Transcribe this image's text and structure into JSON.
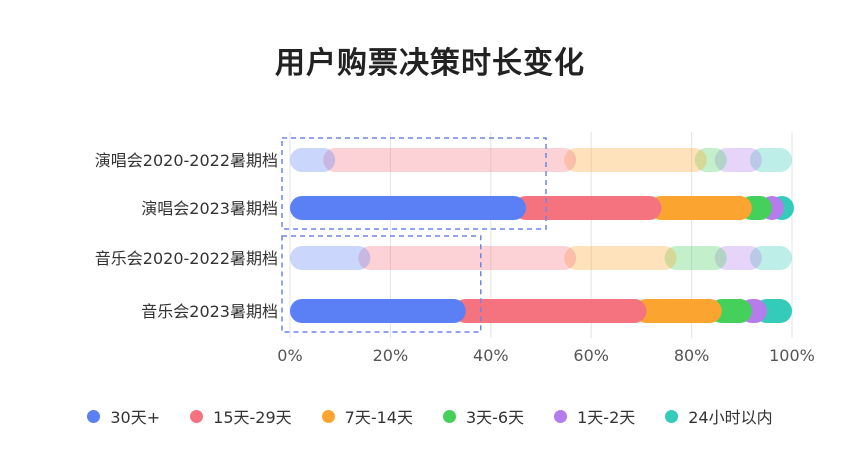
{
  "chart_data": {
    "type": "bar",
    "orientation": "horizontal",
    "stacked": true,
    "title": "用户购票决策时长变化",
    "categories": [
      "演唱会2020-2022暑期档",
      "演唱会2023暑期档",
      "音乐会2020-2022暑期档",
      "音乐会2023暑期档"
    ],
    "xlim": [
      0,
      100
    ],
    "xticks": [
      "0%",
      "20%",
      "40%",
      "60%",
      "80%",
      "100%"
    ],
    "grid": true,
    "legend_position": "bottom",
    "series": [
      {
        "name": "30天+",
        "color": "#5B7FF5",
        "values": [
          9,
          47,
          16,
          35
        ]
      },
      {
        "name": "15天-29天",
        "color": "#F5737F",
        "values": [
          48,
          27,
          41,
          36
        ]
      },
      {
        "name": "7天-14天",
        "color": "#FBA530",
        "values": [
          26,
          18,
          20,
          15
        ]
      },
      {
        "name": "3天-6天",
        "color": "#44D05B",
        "values": [
          4,
          4,
          10,
          6
        ]
      },
      {
        "name": "1天-2天",
        "color": "#B57CEB",
        "values": [
          7,
          2,
          7,
          3
        ]
      },
      {
        "name": "24小时以内",
        "color": "#34CBB8",
        "values": [
          6,
          2,
          6,
          5
        ]
      }
    ],
    "muted_rows": [
      0,
      2
    ],
    "highlight_boxes": [
      {
        "rows": [
          0,
          1
        ],
        "x_end": 51
      },
      {
        "rows": [
          2,
          3
        ],
        "x_end": 38
      }
    ]
  }
}
